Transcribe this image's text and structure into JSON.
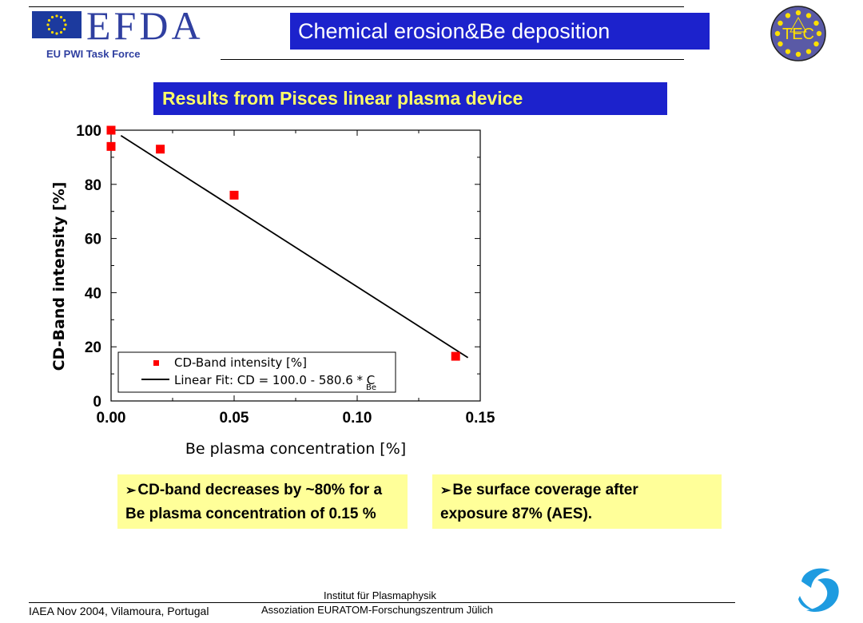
{
  "header": {
    "logo_text": "EFDA",
    "task_force": "EU PWI Task Force",
    "title": "Chemical erosion&Be deposition",
    "tec_logo_text": "TEC",
    "colors": {
      "title_bg": "#1c22cc",
      "title_fg": "#ffffff",
      "subtitle_fg": "#ffff66",
      "logo_blue": "#2f3fa0"
    }
  },
  "subtitle": "Results from Pisces linear plasma device",
  "chart_data": {
    "type": "scatter",
    "xlabel": "Be plasma concentration [%]",
    "ylabel": "CD-Band intensity [%]",
    "xlim": [
      0,
      0.15
    ],
    "ylim": [
      0,
      100
    ],
    "x_ticks": [
      "0.00",
      "0.05",
      "0.10",
      "0.15"
    ],
    "y_ticks": [
      "0",
      "20",
      "40",
      "60",
      "80",
      "100"
    ],
    "series": [
      {
        "name": "CD-Band intensity [%]",
        "type": "scatter",
        "color": "#ff0000",
        "x": [
          0.0,
          0.0,
          0.02,
          0.05,
          0.14
        ],
        "y": [
          100,
          94,
          93,
          76,
          16.5
        ]
      },
      {
        "name": "Linear Fit: CD = 100.0 - 580.6 * C",
        "type": "line",
        "color": "#000000",
        "x": [
          0.004,
          0.145
        ],
        "y": [
          98,
          16
        ]
      }
    ],
    "legend": {
      "entries": [
        "CD-Band intensity [%]",
        "Linear Fit: CD = 100.0 - 580.6 * C"
      ],
      "fit_subscript": "Be",
      "position": "bottom-left"
    },
    "grid": false
  },
  "bullets": [
    {
      "line1": "CD-band decreases by ~80% for a",
      "line2": "Be plasma concentration of 0.15 %"
    },
    {
      "line1": "Be surface coverage after",
      "line2": "exposure 87% (AES)."
    }
  ],
  "footer": {
    "left": "IAEA Nov 2004, Vilamoura, Portugal",
    "institute_line1": "Institut für Plasmaphysik",
    "institute_line2": "Assoziation EURATOM-Forschungszentrum Jülich"
  }
}
